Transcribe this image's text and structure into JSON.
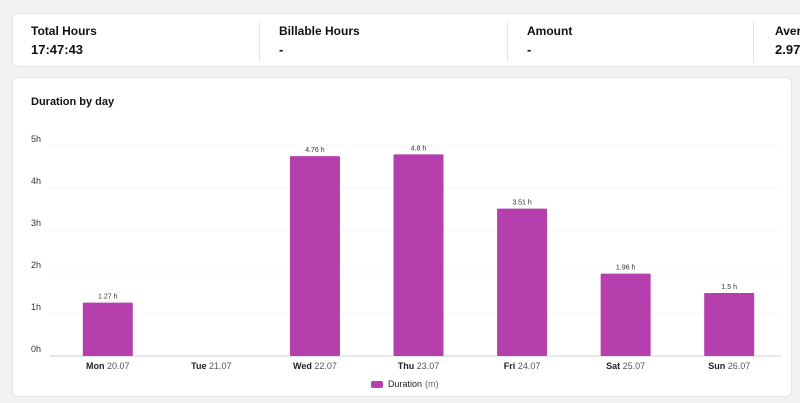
{
  "stats": [
    {
      "label": "Total Hours",
      "value": "17:47:43"
    },
    {
      "label": "Billable Hours",
      "value": "-"
    },
    {
      "label": "Amount",
      "value": "-"
    },
    {
      "label": "Avera",
      "value": "2.97"
    }
  ],
  "chart_card": {
    "title": "Duration by day"
  },
  "colors": {
    "bar": "#b53fad",
    "grid": "#ececef",
    "axis": "#cfcfd4"
  },
  "legend": {
    "label": "Duration",
    "unit": "(m)"
  },
  "chart_data": {
    "type": "bar",
    "title": "Duration by day",
    "categories": [
      {
        "day": "Mon",
        "date": "20.07"
      },
      {
        "day": "Tue",
        "date": "21.07"
      },
      {
        "day": "Wed",
        "date": "22.07"
      },
      {
        "day": "Thu",
        "date": "23.07"
      },
      {
        "day": "Fri",
        "date": "24.07"
      },
      {
        "day": "Sat",
        "date": "25.07"
      },
      {
        "day": "Sun",
        "date": "26.07"
      }
    ],
    "series": [
      {
        "name": "Duration",
        "values": [
          1.27,
          0,
          4.76,
          4.8,
          3.51,
          1.96,
          1.5
        ]
      }
    ],
    "data_labels": [
      "1.27 h",
      "",
      "4.76 h",
      "4.8 h",
      "3.51 h",
      "1.96 h",
      "1.5 h"
    ],
    "yticks": [
      "0h",
      "1h",
      "2h",
      "3h",
      "4h",
      "5h"
    ],
    "ylim": [
      0,
      5
    ],
    "grid": true,
    "legend_position": "bottom"
  }
}
